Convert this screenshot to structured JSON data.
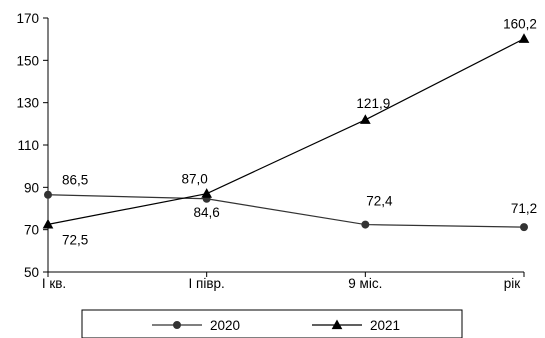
{
  "chart_data": {
    "type": "line",
    "title": "",
    "xlabel": "",
    "ylabel": "",
    "categories": [
      "I кв.",
      "I півр.",
      "9 міс.",
      "рік"
    ],
    "ylim": [
      50,
      170
    ],
    "yticks": [
      50,
      70,
      90,
      110,
      130,
      150,
      170
    ],
    "ytick_labels": [
      "50",
      "70",
      "90",
      "110",
      "130",
      "150",
      "170"
    ],
    "grid": false,
    "legend_position": "bottom",
    "series": [
      {
        "name": "2020",
        "values": [
          86.5,
          84.6,
          72.4,
          71.2
        ],
        "labels": [
          "86,5",
          "84,6",
          "72,4",
          "71,2"
        ],
        "marker": "circle",
        "color": "#333333"
      },
      {
        "name": "2021",
        "values": [
          72.5,
          87.0,
          121.9,
          160.2
        ],
        "labels": [
          "72,5",
          "87,0",
          "121,9",
          "160,2"
        ],
        "marker": "triangle",
        "color": "#000000"
      }
    ]
  }
}
